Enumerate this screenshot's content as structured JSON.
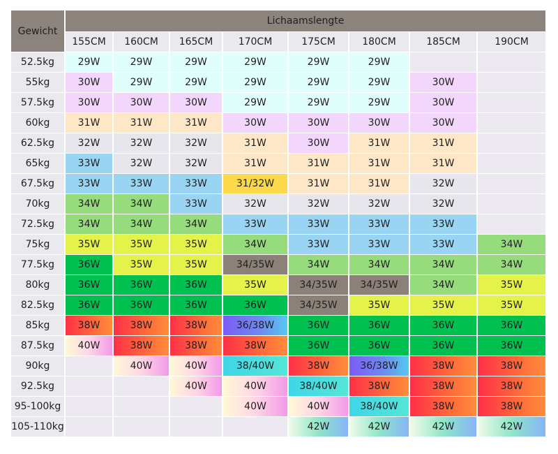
{
  "header": {
    "row_label": "Gewicht",
    "column_group_label": "Lichaamslengte"
  },
  "heights": [
    "155CM",
    "160CM",
    "165CM",
    "170CM",
    "175CM",
    "180CM",
    "185CM",
    "190CM"
  ],
  "colors": {
    "header_bg": "#8c837d",
    "c-cyan": "#e0fffc",
    "c-lilac": "#f2d6fb",
    "c-peach": "#fde7c6",
    "c-grey": "#e7e6ec",
    "c-blue": "#99d4f2",
    "c-yellow": "#fcd94a",
    "c-green": "#96dc7c",
    "c-lime": "#e4f24a",
    "c-dgreen": "#00c050",
    "c-taupe": "#8c8178",
    "c-red": "#ff4a42",
    "c-violet": "#7a5cf5",
    "c-pastel": "#ffd6e6",
    "c-teal": "#3fd6e8",
    "c-mint": "#8fe6c8",
    "c-empty": "#eceaf0"
  },
  "rows": [
    {
      "weight": "52.5kg",
      "cells": [
        [
          "29W",
          "c-cyan"
        ],
        [
          "29W",
          "c-cyan"
        ],
        [
          "29W",
          "c-cyan"
        ],
        [
          "29W",
          "c-cyan"
        ],
        [
          "29W",
          "c-cyan"
        ],
        [
          "29W",
          "c-cyan"
        ],
        [
          "",
          "c-empty"
        ],
        [
          "",
          "c-empty"
        ]
      ]
    },
    {
      "weight": "55kg",
      "cells": [
        [
          "30W",
          "c-lilac"
        ],
        [
          "29W",
          "c-cyan"
        ],
        [
          "29W",
          "c-cyan"
        ],
        [
          "29W",
          "c-cyan"
        ],
        [
          "29W",
          "c-cyan"
        ],
        [
          "29W",
          "c-cyan"
        ],
        [
          "30W",
          "c-lilac"
        ],
        [
          "",
          "c-empty"
        ]
      ]
    },
    {
      "weight": "57.5kg",
      "cells": [
        [
          "30W",
          "c-lilac"
        ],
        [
          "30W",
          "c-lilac"
        ],
        [
          "30W",
          "c-lilac"
        ],
        [
          "29W",
          "c-cyan"
        ],
        [
          "29W",
          "c-cyan"
        ],
        [
          "29W",
          "c-cyan"
        ],
        [
          "30W",
          "c-lilac"
        ],
        [
          "",
          "c-empty"
        ]
      ]
    },
    {
      "weight": "60kg",
      "cells": [
        [
          "31W",
          "c-peach"
        ],
        [
          "31W",
          "c-peach"
        ],
        [
          "31W",
          "c-peach"
        ],
        [
          "30W",
          "c-lilac"
        ],
        [
          "30W",
          "c-lilac"
        ],
        [
          "30W",
          "c-lilac"
        ],
        [
          "30W",
          "c-lilac"
        ],
        [
          "",
          "c-empty"
        ]
      ]
    },
    {
      "weight": "62.5kg",
      "cells": [
        [
          "32W",
          "c-grey"
        ],
        [
          "32W",
          "c-grey"
        ],
        [
          "32W",
          "c-grey"
        ],
        [
          "31W",
          "c-peach"
        ],
        [
          "30W",
          "c-lilac"
        ],
        [
          "31W",
          "c-peach"
        ],
        [
          "31W",
          "c-peach"
        ],
        [
          "",
          "c-empty"
        ]
      ]
    },
    {
      "weight": "65kg",
      "cells": [
        [
          "33W",
          "c-blue"
        ],
        [
          "32W",
          "c-grey"
        ],
        [
          "32W",
          "c-grey"
        ],
        [
          "31W",
          "c-peach"
        ],
        [
          "31W",
          "c-peach"
        ],
        [
          "31W",
          "c-peach"
        ],
        [
          "31W",
          "c-peach"
        ],
        [
          "",
          "c-empty"
        ]
      ]
    },
    {
      "weight": "67.5kg",
      "cells": [
        [
          "33W",
          "c-blue"
        ],
        [
          "33W",
          "c-blue"
        ],
        [
          "33W",
          "c-blue"
        ],
        [
          "31/32W",
          "c-yellow"
        ],
        [
          "31W",
          "c-peach"
        ],
        [
          "31W",
          "c-peach"
        ],
        [
          "32W",
          "c-grey"
        ],
        [
          "",
          "c-empty"
        ]
      ]
    },
    {
      "weight": "70kg",
      "cells": [
        [
          "34W",
          "c-green"
        ],
        [
          "34W",
          "c-green"
        ],
        [
          "33W",
          "c-blue"
        ],
        [
          "32W",
          "c-grey"
        ],
        [
          "32W",
          "c-grey"
        ],
        [
          "32W",
          "c-grey"
        ],
        [
          "32W",
          "c-grey"
        ],
        [
          "",
          "c-empty"
        ]
      ]
    },
    {
      "weight": "72.5kg",
      "cells": [
        [
          "34W",
          "c-green"
        ],
        [
          "34W",
          "c-green"
        ],
        [
          "34W",
          "c-green"
        ],
        [
          "33W",
          "c-blue"
        ],
        [
          "33W",
          "c-blue"
        ],
        [
          "33W",
          "c-blue"
        ],
        [
          "33W",
          "c-blue"
        ],
        [
          "",
          "c-empty"
        ]
      ]
    },
    {
      "weight": "75kg",
      "cells": [
        [
          "35W",
          "c-lime"
        ],
        [
          "35W",
          "c-lime"
        ],
        [
          "35W",
          "c-lime"
        ],
        [
          "34W",
          "c-green"
        ],
        [
          "33W",
          "c-blue"
        ],
        [
          "33W",
          "c-blue"
        ],
        [
          "33W",
          "c-blue"
        ],
        [
          "34W",
          "c-green"
        ]
      ]
    },
    {
      "weight": "77.5kg",
      "cells": [
        [
          "36W",
          "c-dgreen"
        ],
        [
          "35W",
          "c-lime"
        ],
        [
          "35W",
          "c-lime"
        ],
        [
          "34/35W",
          "c-taupe"
        ],
        [
          "34W",
          "c-green"
        ],
        [
          "34W",
          "c-green"
        ],
        [
          "34W",
          "c-green"
        ],
        [
          "34W",
          "c-green"
        ]
      ]
    },
    {
      "weight": "80kg",
      "cells": [
        [
          "36W",
          "c-dgreen"
        ],
        [
          "36W",
          "c-dgreen"
        ],
        [
          "36W",
          "c-dgreen"
        ],
        [
          "35W",
          "c-lime"
        ],
        [
          "34/35W",
          "c-taupe"
        ],
        [
          "34/35W",
          "c-taupe"
        ],
        [
          "34W",
          "c-green"
        ],
        [
          "35W",
          "c-lime"
        ]
      ]
    },
    {
      "weight": "82.5kg",
      "cells": [
        [
          "36W",
          "c-dgreen"
        ],
        [
          "36W",
          "c-dgreen"
        ],
        [
          "36W",
          "c-dgreen"
        ],
        [
          "36W",
          "c-dgreen"
        ],
        [
          "34/35W",
          "c-taupe"
        ],
        [
          "35W",
          "c-lime"
        ],
        [
          "35W",
          "c-lime"
        ],
        [
          "35W",
          "c-lime"
        ]
      ]
    },
    {
      "weight": "85kg",
      "cells": [
        [
          "38W",
          "c-red"
        ],
        [
          "38W",
          "c-red"
        ],
        [
          "38W",
          "c-red"
        ],
        [
          "36/38W",
          "c-violet"
        ],
        [
          "36W",
          "c-dgreen"
        ],
        [
          "36W",
          "c-dgreen"
        ],
        [
          "36W",
          "c-dgreen"
        ],
        [
          "36W",
          "c-dgreen"
        ]
      ]
    },
    {
      "weight": "87.5kg",
      "cells": [
        [
          "40W",
          "c-pastel"
        ],
        [
          "38W",
          "c-red"
        ],
        [
          "38W",
          "c-red"
        ],
        [
          "38W",
          "c-red"
        ],
        [
          "36W",
          "c-dgreen"
        ],
        [
          "36W",
          "c-dgreen"
        ],
        [
          "36W",
          "c-dgreen"
        ],
        [
          "36W",
          "c-dgreen"
        ]
      ]
    },
    {
      "weight": "90kg",
      "cells": [
        [
          "",
          "c-empty"
        ],
        [
          "40W",
          "c-pastel"
        ],
        [
          "40W",
          "c-pastel"
        ],
        [
          "38/40W",
          "c-teal"
        ],
        [
          "38W",
          "c-red"
        ],
        [
          "36/38W",
          "c-violet"
        ],
        [
          "38W",
          "c-red"
        ],
        [
          "38W",
          "c-red"
        ]
      ]
    },
    {
      "weight": "92.5kg",
      "cells": [
        [
          "",
          "c-empty"
        ],
        [
          "",
          "c-empty"
        ],
        [
          "40W",
          "c-pastel"
        ],
        [
          "40W",
          "c-pastel"
        ],
        [
          "38/40W",
          "c-teal"
        ],
        [
          "38W",
          "c-red"
        ],
        [
          "38W",
          "c-red"
        ],
        [
          "38W",
          "c-red"
        ]
      ]
    },
    {
      "weight": "95-100kg",
      "cells": [
        [
          "",
          "c-empty"
        ],
        [
          "",
          "c-empty"
        ],
        [
          "",
          "c-empty"
        ],
        [
          "40W",
          "c-pastel"
        ],
        [
          "40W",
          "c-pastel"
        ],
        [
          "38/40W",
          "c-teal"
        ],
        [
          "38W",
          "c-red"
        ],
        [
          "38W",
          "c-red"
        ]
      ]
    },
    {
      "weight": "105-110kg",
      "cells": [
        [
          "",
          "c-empty"
        ],
        [
          "",
          "c-empty"
        ],
        [
          "",
          "c-empty"
        ],
        [
          "",
          "c-empty"
        ],
        [
          "42W",
          "c-mint"
        ],
        [
          "42W",
          "c-mint"
        ],
        [
          "42W",
          "c-mint"
        ],
        [
          "42W",
          "c-mint"
        ]
      ]
    }
  ]
}
